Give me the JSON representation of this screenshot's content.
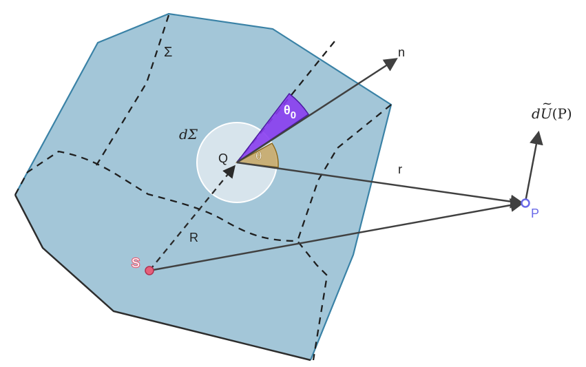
{
  "labels": {
    "sigma": "Σ",
    "d_sigma": "dΣ",
    "q": "Q",
    "n": "n",
    "theta": "θ",
    "theta0_main": "θ",
    "theta0_sub": "0",
    "r_small": "r",
    "r_big": "R",
    "s": "S",
    "p": "P",
    "du_d": "d",
    "du_u": "U",
    "du_tilde": "~",
    "du_arg": "(P)"
  },
  "colors": {
    "surface_fill": "#a3c6d8",
    "surface_edge_top": "#3a82a6",
    "surface_edge_bottom": "#2d2d2d",
    "dashed": "#1f1f1f",
    "vector": "#404040",
    "patch": "#e8eef3",
    "theta_wedge": "#c4a15a",
    "theta0_wedge": "#8a3df0",
    "point_s": "#e5607a",
    "point_p": "#6a6ae8"
  }
}
